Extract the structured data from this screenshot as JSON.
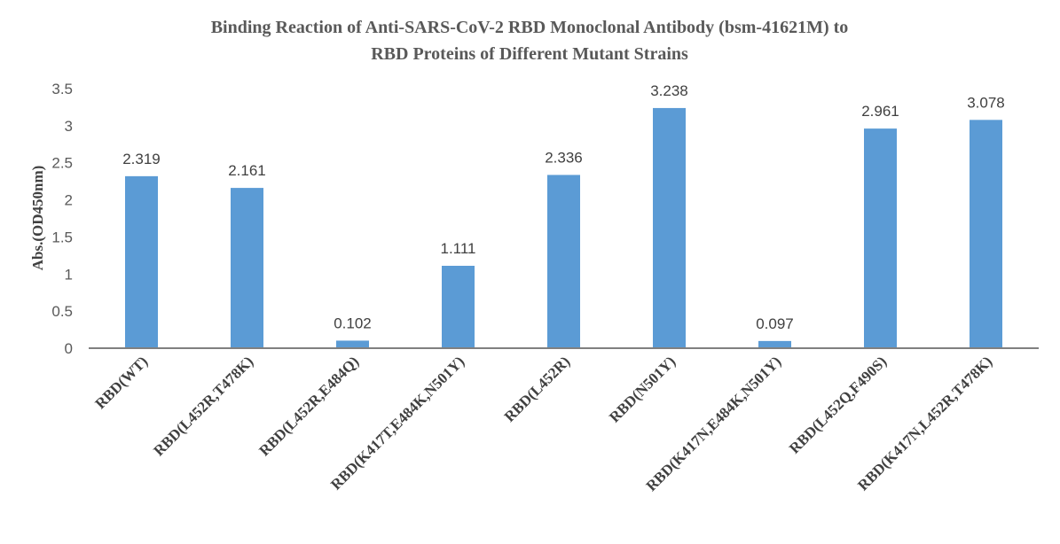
{
  "chart_data": {
    "type": "bar",
    "title": [
      "Binding Reaction of Anti-SARS-CoV-2 RBD Monoclonal Antibody (bsm-41621M) to",
      "RBD Proteins of Different Mutant Strains"
    ],
    "xlabel": "",
    "ylabel": "Abs.(OD450nm)",
    "ylim": [
      0,
      3.5
    ],
    "yticks": [
      "0",
      "0.5",
      "1",
      "1.5",
      "2",
      "2.5",
      "3",
      "3.5"
    ],
    "grid": false,
    "categories": [
      "RBD(WT)",
      "RBD(L452R,T478K)",
      "RBD(L452R,E484Q)",
      "RBD(K417T,E484K,N501Y)",
      "RBD(L452R)",
      "RBD(N501Y)",
      "RBD(K417N,E484K,N501Y)",
      "RBD(L452Q,F490S)",
      "RBD(K417N,L452R,T478K)"
    ],
    "values": [
      2.319,
      2.161,
      0.102,
      1.111,
      2.336,
      3.238,
      0.097,
      2.961,
      3.078
    ],
    "data_labels": [
      "2.319",
      "2.161",
      "0.102",
      "1.111",
      "2.336",
      "3.238",
      "0.097",
      "2.961",
      "3.078"
    ],
    "bar_color": "#5B9BD5",
    "axis_color": "#808080"
  }
}
